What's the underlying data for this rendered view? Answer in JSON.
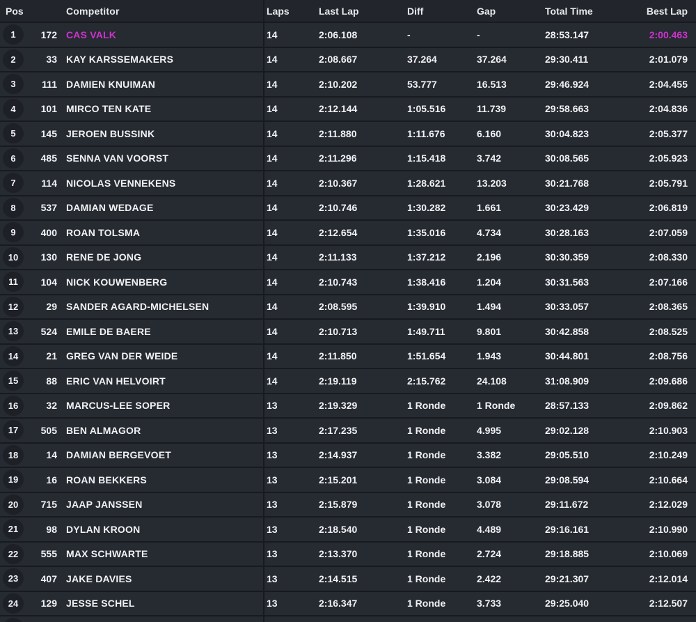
{
  "colors": {
    "highlight": "#cc33cc"
  },
  "table": {
    "columns": [
      {
        "key": "pos",
        "label": "Pos"
      },
      {
        "key": "num",
        "label": ""
      },
      {
        "key": "name",
        "label": "Competitor"
      },
      {
        "key": "laps",
        "label": "Laps"
      },
      {
        "key": "last_lap",
        "label": "Last Lap"
      },
      {
        "key": "diff",
        "label": "Diff"
      },
      {
        "key": "gap",
        "label": "Gap"
      },
      {
        "key": "total_time",
        "label": "Total Time"
      },
      {
        "key": "best_lap",
        "label": "Best Lap"
      }
    ],
    "rows": [
      {
        "pos": "1",
        "num": "172",
        "name": "CAS VALK",
        "laps": "14",
        "last_lap": "2:06.108",
        "diff": "-",
        "gap": "-",
        "total_time": "28:53.147",
        "best_lap": "2:00.463",
        "highlight": true
      },
      {
        "pos": "2",
        "num": "33",
        "name": "KAY KARSSEMAKERS",
        "laps": "14",
        "last_lap": "2:08.667",
        "diff": "37.264",
        "gap": "37.264",
        "total_time": "29:30.411",
        "best_lap": "2:01.079"
      },
      {
        "pos": "3",
        "num": "111",
        "name": "DAMIEN KNUIMAN",
        "laps": "14",
        "last_lap": "2:10.202",
        "diff": "53.777",
        "gap": "16.513",
        "total_time": "29:46.924",
        "best_lap": "2:04.455"
      },
      {
        "pos": "4",
        "num": "101",
        "name": "MIRCO TEN KATE",
        "laps": "14",
        "last_lap": "2:12.144",
        "diff": "1:05.516",
        "gap": "11.739",
        "total_time": "29:58.663",
        "best_lap": "2:04.836"
      },
      {
        "pos": "5",
        "num": "145",
        "name": "JEROEN BUSSINK",
        "laps": "14",
        "last_lap": "2:11.880",
        "diff": "1:11.676",
        "gap": "6.160",
        "total_time": "30:04.823",
        "best_lap": "2:05.377"
      },
      {
        "pos": "6",
        "num": "485",
        "name": "SENNA VAN VOORST",
        "laps": "14",
        "last_lap": "2:11.296",
        "diff": "1:15.418",
        "gap": "3.742",
        "total_time": "30:08.565",
        "best_lap": "2:05.923"
      },
      {
        "pos": "7",
        "num": "114",
        "name": "NICOLAS VENNEKENS",
        "laps": "14",
        "last_lap": "2:10.367",
        "diff": "1:28.621",
        "gap": "13.203",
        "total_time": "30:21.768",
        "best_lap": "2:05.791"
      },
      {
        "pos": "8",
        "num": "537",
        "name": "DAMIAN WEDAGE",
        "laps": "14",
        "last_lap": "2:10.746",
        "diff": "1:30.282",
        "gap": "1.661",
        "total_time": "30:23.429",
        "best_lap": "2:06.819"
      },
      {
        "pos": "9",
        "num": "400",
        "name": "ROAN TOLSMA",
        "laps": "14",
        "last_lap": "2:12.654",
        "diff": "1:35.016",
        "gap": "4.734",
        "total_time": "30:28.163",
        "best_lap": "2:07.059"
      },
      {
        "pos": "10",
        "num": "130",
        "name": "RENE DE JONG",
        "laps": "14",
        "last_lap": "2:11.133",
        "diff": "1:37.212",
        "gap": "2.196",
        "total_time": "30:30.359",
        "best_lap": "2:08.330"
      },
      {
        "pos": "11",
        "num": "104",
        "name": "NICK KOUWENBERG",
        "laps": "14",
        "last_lap": "2:10.743",
        "diff": "1:38.416",
        "gap": "1.204",
        "total_time": "30:31.563",
        "best_lap": "2:07.166"
      },
      {
        "pos": "12",
        "num": "29",
        "name": "SANDER AGARD-MICHELSEN",
        "laps": "14",
        "last_lap": "2:08.595",
        "diff": "1:39.910",
        "gap": "1.494",
        "total_time": "30:33.057",
        "best_lap": "2:08.365"
      },
      {
        "pos": "13",
        "num": "524",
        "name": "EMILE DE BAERE",
        "laps": "14",
        "last_lap": "2:10.713",
        "diff": "1:49.711",
        "gap": "9.801",
        "total_time": "30:42.858",
        "best_lap": "2:08.525"
      },
      {
        "pos": "14",
        "num": "21",
        "name": "GREG VAN DER WEIDE",
        "laps": "14",
        "last_lap": "2:11.850",
        "diff": "1:51.654",
        "gap": "1.943",
        "total_time": "30:44.801",
        "best_lap": "2:08.756"
      },
      {
        "pos": "15",
        "num": "88",
        "name": "ERIC VAN HELVOIRT",
        "laps": "14",
        "last_lap": "2:19.119",
        "diff": "2:15.762",
        "gap": "24.108",
        "total_time": "31:08.909",
        "best_lap": "2:09.686"
      },
      {
        "pos": "16",
        "num": "32",
        "name": "MARCUS-LEE SOPER",
        "laps": "13",
        "last_lap": "2:19.329",
        "diff": "1 Ronde",
        "gap": "1 Ronde",
        "total_time": "28:57.133",
        "best_lap": "2:09.862"
      },
      {
        "pos": "17",
        "num": "505",
        "name": "BEN ALMAGOR",
        "laps": "13",
        "last_lap": "2:17.235",
        "diff": "1 Ronde",
        "gap": "4.995",
        "total_time": "29:02.128",
        "best_lap": "2:10.903"
      },
      {
        "pos": "18",
        "num": "14",
        "name": "DAMIAN BERGEVOET",
        "laps": "13",
        "last_lap": "2:14.937",
        "diff": "1 Ronde",
        "gap": "3.382",
        "total_time": "29:05.510",
        "best_lap": "2:10.249"
      },
      {
        "pos": "19",
        "num": "16",
        "name": "ROAN BEKKERS",
        "laps": "13",
        "last_lap": "2:15.201",
        "diff": "1 Ronde",
        "gap": "3.084",
        "total_time": "29:08.594",
        "best_lap": "2:10.664"
      },
      {
        "pos": "20",
        "num": "715",
        "name": "JAAP JANSSEN",
        "laps": "13",
        "last_lap": "2:15.879",
        "diff": "1 Ronde",
        "gap": "3.078",
        "total_time": "29:11.672",
        "best_lap": "2:12.029"
      },
      {
        "pos": "21",
        "num": "98",
        "name": "DYLAN KROON",
        "laps": "13",
        "last_lap": "2:18.540",
        "diff": "1 Ronde",
        "gap": "4.489",
        "total_time": "29:16.161",
        "best_lap": "2:10.990"
      },
      {
        "pos": "22",
        "num": "555",
        "name": "MAX SCHWARTE",
        "laps": "13",
        "last_lap": "2:13.370",
        "diff": "1 Ronde",
        "gap": "2.724",
        "total_time": "29:18.885",
        "best_lap": "2:10.069"
      },
      {
        "pos": "23",
        "num": "407",
        "name": "JAKE DAVIES",
        "laps": "13",
        "last_lap": "2:14.515",
        "diff": "1 Ronde",
        "gap": "2.422",
        "total_time": "29:21.307",
        "best_lap": "2:12.014"
      },
      {
        "pos": "24",
        "num": "129",
        "name": "JESSE SCHEL",
        "laps": "13",
        "last_lap": "2:16.347",
        "diff": "1 Ronde",
        "gap": "3.733",
        "total_time": "29:25.040",
        "best_lap": "2:12.507"
      }
    ]
  }
}
